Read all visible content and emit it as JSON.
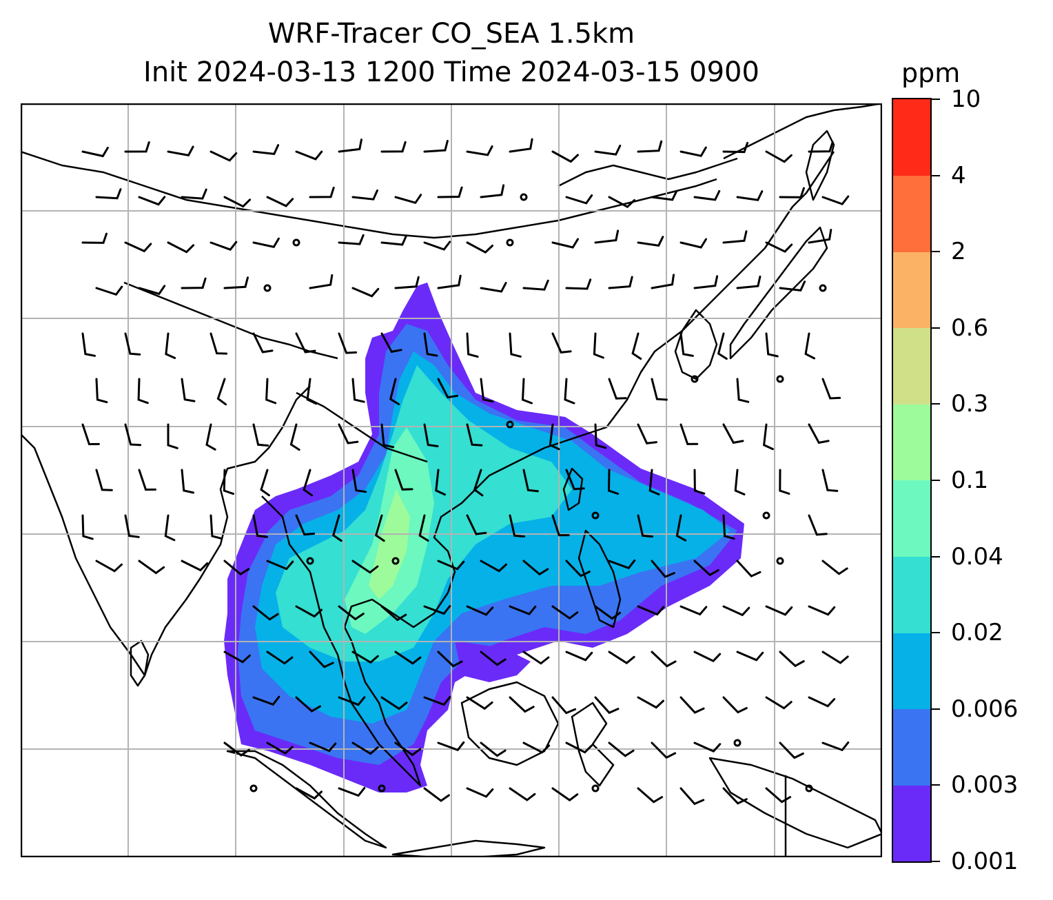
{
  "title": {
    "line1": "WRF-Tracer CO_SEA 1.5km",
    "line2": "Init 2024-03-13 1200 Time 2024-03-15 0900"
  },
  "colorbar": {
    "unit": "ppm",
    "levels": [
      "0.001",
      "0.003",
      "0.006",
      "0.02",
      "0.04",
      "0.1",
      "0.3",
      "0.6",
      "2",
      "4",
      "10"
    ],
    "colors": [
      "#6a2bf9",
      "#3a74f2",
      "#06b1e8",
      "#35dfd2",
      "#6cf8bf",
      "#9dfb9b",
      "#d0e089",
      "#fcb265",
      "#ff6f3b",
      "#ff2a18"
    ]
  },
  "map": {
    "gridlines": true,
    "land_color": "#ffffff",
    "coast_color": "#000000",
    "grid_color": "#b3b3b3"
  }
}
